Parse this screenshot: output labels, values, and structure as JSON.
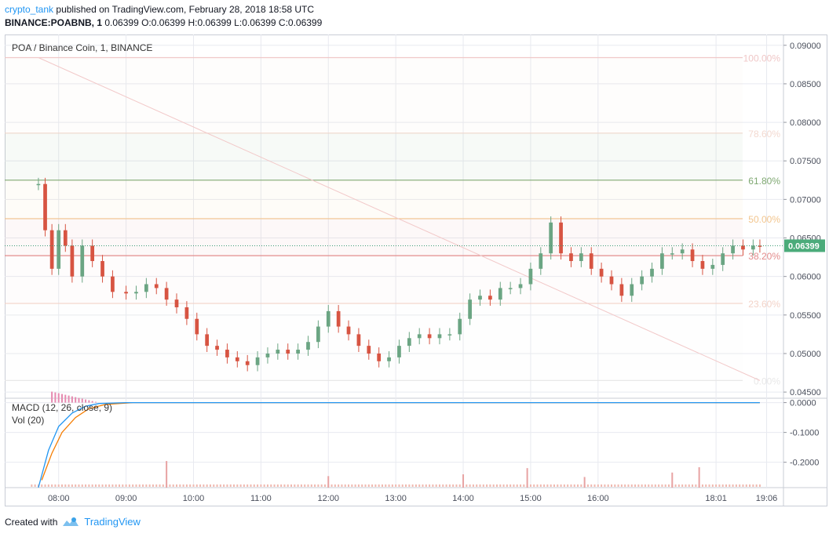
{
  "header": {
    "author": "crypto_tank",
    "published": "published on TradingView.com, February 28, 2018 18:58 UTC",
    "symbol": "BINANCE:POABNB, 1",
    "ohlc": "O:0.06399 H:0.06399 L:0.06399 C:0.06399",
    "last": "0.06399"
  },
  "footer": {
    "created_with": "Created with",
    "brand": "TradingView"
  },
  "chart_data": {
    "type": "candlestick",
    "title": "POA / Binance Coin, 1, BINANCE",
    "price_axis": {
      "ylim": [
        0.0443,
        0.0914
      ],
      "ticks": [
        "0.09000",
        "0.08500",
        "0.08000",
        "0.07500",
        "0.07000",
        "0.06500",
        "0.06000",
        "0.05500",
        "0.05000",
        "0.04500"
      ],
      "tick_values": [
        0.09,
        0.085,
        0.08,
        0.075,
        0.07,
        0.065,
        0.06,
        0.055,
        0.05,
        0.045
      ],
      "last_price": 0.06399,
      "last_price_label": "0.06399"
    },
    "time_axis": {
      "ticks": [
        "08:00",
        "09:00",
        "10:00",
        "11:00",
        "12:00",
        "13:00",
        "14:00",
        "15:00",
        "16:00",
        "18:01",
        "19:06"
      ],
      "tick_hours": [
        8,
        9,
        10,
        11,
        12,
        13,
        14,
        15,
        16,
        17.75,
        18.5
      ]
    },
    "colors": {
      "up": "#6ba583",
      "down": "#d75442",
      "grid": "#e8eaf0"
    },
    "fibonacci": [
      {
        "label": "100.00%",
        "price": 0.0884,
        "color": "#f0c8c8"
      },
      {
        "label": "78.60%",
        "price": 0.0786,
        "color": "#f3d9d0"
      },
      {
        "label": "61.80%",
        "price": 0.0725,
        "color": "#7fa872"
      },
      {
        "label": "50.00%",
        "price": 0.0675,
        "color": "#f2c58e"
      },
      {
        "label": "38.20%",
        "price": 0.0627,
        "color": "#e38c8c"
      },
      {
        "label": "23.60%",
        "price": 0.0565,
        "color": "#f3d3c8"
      },
      {
        "label": "0.00%",
        "price": 0.0465,
        "color": "#e8e8e8"
      }
    ],
    "trendline": {
      "from": [
        7.7,
        0.0884
      ],
      "to": [
        18.4,
        0.0465
      ]
    },
    "series": [
      {
        "name": "POA/BNB",
        "points": [
          [
            7.7,
            0.072
          ],
          [
            7.8,
            0.066
          ],
          [
            7.9,
            0.061
          ],
          [
            8.0,
            0.066
          ],
          [
            8.1,
            0.064
          ],
          [
            8.2,
            0.06
          ],
          [
            8.35,
            0.064
          ],
          [
            8.5,
            0.062
          ],
          [
            8.65,
            0.06
          ],
          [
            8.8,
            0.058
          ],
          [
            9.0,
            0.0578
          ],
          [
            9.15,
            0.058
          ],
          [
            9.3,
            0.059
          ],
          [
            9.45,
            0.0585
          ],
          [
            9.6,
            0.057
          ],
          [
            9.75,
            0.056
          ],
          [
            9.9,
            0.0545
          ],
          [
            10.05,
            0.0525
          ],
          [
            10.2,
            0.051
          ],
          [
            10.35,
            0.0505
          ],
          [
            10.5,
            0.0495
          ],
          [
            10.65,
            0.049
          ],
          [
            10.8,
            0.0485
          ],
          [
            10.95,
            0.0495
          ],
          [
            11.1,
            0.05
          ],
          [
            11.25,
            0.0505
          ],
          [
            11.4,
            0.05
          ],
          [
            11.55,
            0.0505
          ],
          [
            11.7,
            0.0515
          ],
          [
            11.85,
            0.0535
          ],
          [
            12.0,
            0.0555
          ],
          [
            12.15,
            0.0535
          ],
          [
            12.3,
            0.0525
          ],
          [
            12.45,
            0.051
          ],
          [
            12.6,
            0.05
          ],
          [
            12.75,
            0.049
          ],
          [
            12.9,
            0.0495
          ],
          [
            13.05,
            0.051
          ],
          [
            13.2,
            0.052
          ],
          [
            13.35,
            0.0525
          ],
          [
            13.5,
            0.052
          ],
          [
            13.65,
            0.0525
          ],
          [
            13.8,
            0.0525
          ],
          [
            13.95,
            0.0545
          ],
          [
            14.1,
            0.057
          ],
          [
            14.25,
            0.0575
          ],
          [
            14.4,
            0.057
          ],
          [
            14.55,
            0.0585
          ],
          [
            14.7,
            0.0585
          ],
          [
            14.85,
            0.059
          ],
          [
            15.0,
            0.061
          ],
          [
            15.15,
            0.063
          ],
          [
            15.3,
            0.067
          ],
          [
            15.45,
            0.063
          ],
          [
            15.6,
            0.062
          ],
          [
            15.75,
            0.063
          ],
          [
            15.9,
            0.061
          ],
          [
            16.05,
            0.06
          ],
          [
            16.2,
            0.059
          ],
          [
            16.35,
            0.0575
          ],
          [
            16.5,
            0.059
          ],
          [
            16.65,
            0.06
          ],
          [
            16.8,
            0.061
          ],
          [
            16.95,
            0.063
          ],
          [
            17.1,
            0.063
          ],
          [
            17.25,
            0.0635
          ],
          [
            17.4,
            0.062
          ],
          [
            17.55,
            0.061
          ],
          [
            17.7,
            0.0615
          ],
          [
            17.85,
            0.063
          ],
          [
            18.0,
            0.064
          ],
          [
            18.15,
            0.0635
          ],
          [
            18.3,
            0.064
          ],
          [
            18.4,
            0.0639
          ]
        ]
      }
    ],
    "indicators": {
      "macd_label": "MACD (12, 26, close, 9)",
      "vol_label": "Vol (20)",
      "axis_ticks": [
        "0.0000",
        "-0.1000",
        "-0.2000"
      ],
      "axis_values": [
        0,
        -0.1,
        -0.2
      ],
      "ylim": [
        -0.285,
        0.012
      ],
      "macd": [
        [
          7.7,
          -0.285
        ],
        [
          7.85,
          -0.16
        ],
        [
          8.0,
          -0.08
        ],
        [
          8.2,
          -0.035
        ],
        [
          8.4,
          -0.012
        ],
        [
          8.6,
          -0.003
        ],
        [
          9.0,
          0
        ],
        [
          18.4,
          0
        ]
      ],
      "signal": [
        [
          7.75,
          -0.26
        ],
        [
          7.9,
          -0.17
        ],
        [
          8.05,
          -0.1
        ],
        [
          8.25,
          -0.05
        ],
        [
          8.45,
          -0.02
        ],
        [
          8.7,
          -0.006
        ],
        [
          9.1,
          0
        ],
        [
          18.4,
          0
        ]
      ],
      "volume_spikes": [
        [
          9.6,
          0.3
        ],
        [
          12.0,
          0.13
        ],
        [
          14.0,
          0.15
        ],
        [
          14.95,
          0.22
        ],
        [
          15.8,
          0.12
        ],
        [
          17.1,
          0.17
        ],
        [
          17.5,
          0.23
        ]
      ]
    }
  }
}
